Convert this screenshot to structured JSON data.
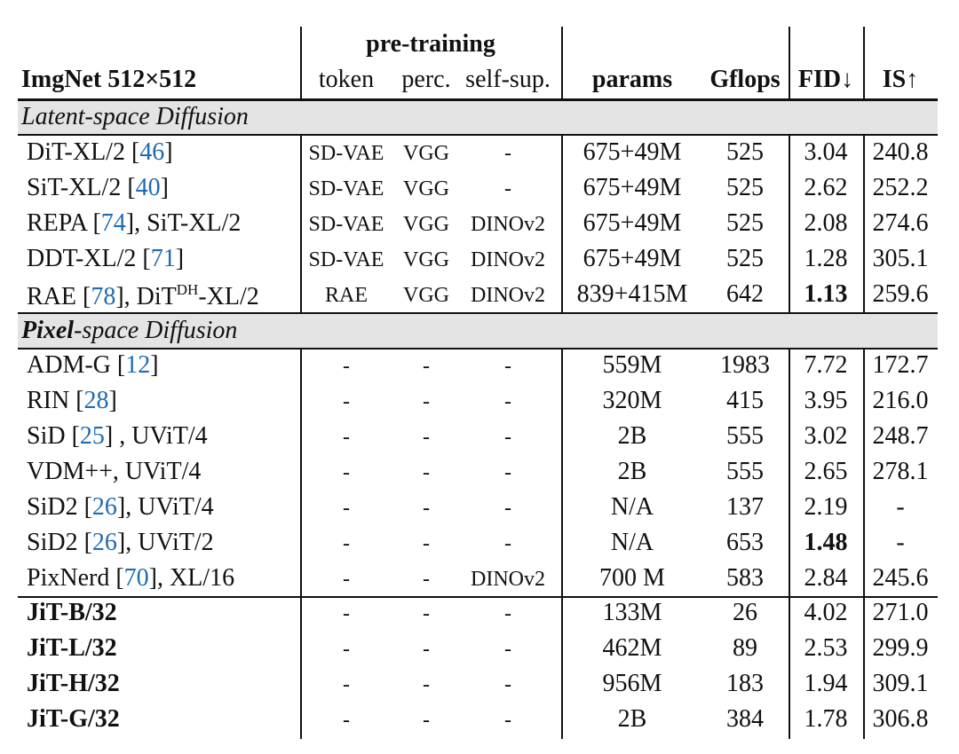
{
  "header": {
    "group_label": "pre-training",
    "title": "ImgNet 512×512",
    "col_token": "token",
    "col_perc": "perc.",
    "col_selfsup": "self-sup.",
    "col_params": "params",
    "col_gflops": "Gflops",
    "col_fid": "FID↓",
    "col_is": "IS↑"
  },
  "sections": {
    "latent": "Latent-space Diffusion",
    "pixel_bold": "Pixel",
    "pixel_rest": "-space Diffusion"
  },
  "rows": [
    {
      "name": "DiT-XL/2 [",
      "cite": "46",
      "post": "]",
      "token": "SD-VAE",
      "perc": "VGG",
      "selfsup": "-",
      "params": "675+49M",
      "gflops": "525",
      "fid": "3.04",
      "is": "240.8"
    },
    {
      "name": "SiT-XL/2 [",
      "cite": "40",
      "post": "]",
      "token": "SD-VAE",
      "perc": "VGG",
      "selfsup": "-",
      "params": "675+49M",
      "gflops": "525",
      "fid": "2.62",
      "is": "252.2"
    },
    {
      "name": "REPA [",
      "cite": "74",
      "post": "], SiT-XL/2",
      "token": "SD-VAE",
      "perc": "VGG",
      "selfsup": "DINOv2",
      "params": "675+49M",
      "gflops": "525",
      "fid": "2.08",
      "is": "274.6"
    },
    {
      "name": "DDT-XL/2 [",
      "cite": "71",
      "post": "]",
      "token": "SD-VAE",
      "perc": "VGG",
      "selfsup": "DINOv2",
      "params": "675+49M",
      "gflops": "525",
      "fid": "1.28",
      "is": "305.1"
    },
    {
      "name": "RAE [",
      "cite": "78",
      "post": "], DiT",
      "sup": "DH",
      "post2": "-XL/2",
      "token": "RAE",
      "perc": "VGG",
      "selfsup": "DINOv2",
      "params": "839+415M",
      "gflops": "642",
      "fid": "1.13",
      "is": "259.6"
    },
    {
      "name": "ADM-G [",
      "cite": "12",
      "post": "]",
      "token": "-",
      "perc": "-",
      "selfsup": "-",
      "params": "559M",
      "gflops": "1983",
      "fid": "7.72",
      "is": "172.7"
    },
    {
      "name": "RIN [",
      "cite": "28",
      "post": "]",
      "token": "-",
      "perc": "-",
      "selfsup": "-",
      "params": "320M",
      "gflops": "415",
      "fid": "3.95",
      "is": "216.0"
    },
    {
      "name": "SiD [",
      "cite": "25",
      "post": "] , UViT/4",
      "token": "-",
      "perc": "-",
      "selfsup": "-",
      "params": "2B",
      "gflops": "555",
      "fid": "3.02",
      "is": "248.7"
    },
    {
      "name": "VDM++, UViT/4",
      "cite": "",
      "post": "",
      "token": "-",
      "perc": "-",
      "selfsup": "-",
      "params": "2B",
      "gflops": "555",
      "fid": "2.65",
      "is": "278.1"
    },
    {
      "name": "SiD2 [",
      "cite": "26",
      "post": "], UViT/4",
      "token": "-",
      "perc": "-",
      "selfsup": "-",
      "params": "N/A",
      "gflops": "137",
      "fid": "2.19",
      "is": "-"
    },
    {
      "name": "SiD2 [",
      "cite": "26",
      "post": "], UViT/2",
      "token": "-",
      "perc": "-",
      "selfsup": "-",
      "params": "N/A",
      "gflops": "653",
      "fid": "1.48",
      "is": "-"
    },
    {
      "name": "PixNerd [",
      "cite": "70",
      "post": "], XL/16",
      "token": "-",
      "perc": "-",
      "selfsup": "DINOv2",
      "params": "700 M",
      "gflops": "583",
      "fid": "2.84",
      "is": "245.6"
    },
    {
      "name": "JiT-B/32",
      "cite": "",
      "post": "",
      "token": "-",
      "perc": "-",
      "selfsup": "-",
      "params": "133M",
      "gflops": "26",
      "fid": "4.02",
      "is": "271.0"
    },
    {
      "name": "JiT-L/32",
      "cite": "",
      "post": "",
      "token": "-",
      "perc": "-",
      "selfsup": "-",
      "params": "462M",
      "gflops": "89",
      "fid": "2.53",
      "is": "299.9"
    },
    {
      "name": "JiT-H/32",
      "cite": "",
      "post": "",
      "token": "-",
      "perc": "-",
      "selfsup": "-",
      "params": "956M",
      "gflops": "183",
      "fid": "1.94",
      "is": "309.1"
    },
    {
      "name": "JiT-G/32",
      "cite": "",
      "post": "",
      "token": "-",
      "perc": "-",
      "selfsup": "-",
      "params": "2B",
      "gflops": "384",
      "fid": "1.78",
      "is": "306.8"
    }
  ]
}
